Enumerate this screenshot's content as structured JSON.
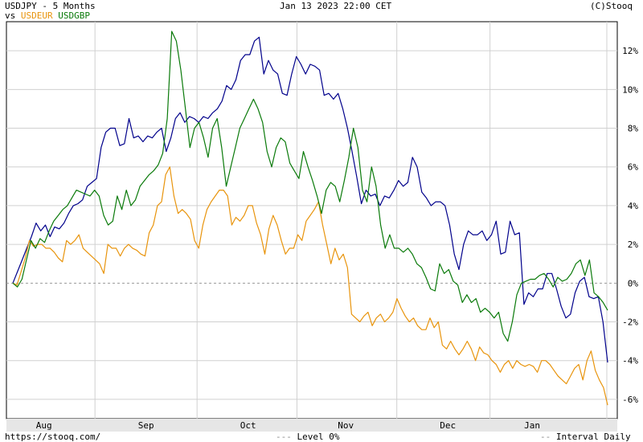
{
  "header": {
    "title": "USDJPY - 5 Months",
    "vs_prefix": "vs",
    "compare_1": "USDEUR",
    "compare_2": "USDGBP",
    "timestamp": "Jan 13 2023 22:00 CET",
    "copyright": "(C)Stooq"
  },
  "footer": {
    "url": "https://stooq.com/",
    "level_label": "Level 0%",
    "interval_label": "Interval Daily"
  },
  "colors": {
    "USDJPY": "#00008b",
    "USDEUR": "#e8940c",
    "USDGBP": "#0a7a0a",
    "grid": "#d0d0d0",
    "zero_line": "#999999"
  },
  "chart_data": {
    "type": "line",
    "title": "USDJPY - 5 Months",
    "ylim": [
      -7,
      13.5
    ],
    "yticks": [
      12,
      10,
      8,
      6,
      4,
      2,
      0,
      -2,
      -4,
      -6
    ],
    "ytick_labels": [
      "12%",
      "10%",
      "8%",
      "6%",
      "4%",
      "2%",
      "0%",
      "-2%",
      "-4%",
      "-6%"
    ],
    "x_index_range": [
      0,
      108
    ],
    "x_month_ticks": [
      {
        "label": "Aug",
        "x": 7
      },
      {
        "label": "Sep",
        "x": 30
      },
      {
        "label": "Oct",
        "x": 53
      },
      {
        "label": "Nov",
        "x": 75
      },
      {
        "label": "Dec",
        "x": 98
      },
      {
        "label": "Jan",
        "x": 117
      }
    ],
    "legend_placement": "top-left",
    "grid": true,
    "series": [
      {
        "name": "USDJPY",
        "values": [
          0,
          0.6,
          1.2,
          1.8,
          2.4,
          3.1,
          2.7,
          3.0,
          2.4,
          2.9,
          2.8,
          3.1,
          3.6,
          4.0,
          4.1,
          4.3,
          5.0,
          5.2,
          5.4,
          7.0,
          7.8,
          8.0,
          8.0,
          7.1,
          7.2,
          8.5,
          7.5,
          7.6,
          7.3,
          7.6,
          7.5,
          7.8,
          8.0,
          6.8,
          7.5,
          8.5,
          8.8,
          8.3,
          8.6,
          8.5,
          8.3,
          8.6,
          8.5,
          8.8,
          9.0,
          9.4,
          10.2,
          10.0,
          10.5,
          11.5,
          11.8,
          11.8,
          12.5,
          12.7,
          10.8,
          11.5,
          11.0,
          10.8,
          9.8,
          9.7,
          10.8,
          11.7,
          11.3,
          10.8,
          11.3,
          11.2,
          11.0,
          9.7,
          9.8,
          9.5,
          9.8,
          9.0,
          8.0,
          6.8,
          5.5,
          4.1,
          4.8,
          4.5,
          4.6,
          4.0,
          4.5,
          4.4,
          4.8,
          5.3,
          5.0,
          5.2,
          6.5,
          6.0,
          4.7,
          4.4,
          4.0,
          4.2,
          4.2,
          4.0,
          3.0,
          1.5,
          0.7,
          2.0,
          2.7,
          2.5,
          2.5,
          2.7,
          2.2,
          2.5,
          3.2,
          1.5,
          1.6,
          3.2,
          2.5,
          2.6,
          -1.1,
          -0.5,
          -0.7,
          -0.3,
          -0.3,
          0.5,
          0.5,
          -0.3,
          -1.2,
          -1.8,
          -1.6,
          -0.5,
          0.1,
          0.3,
          -0.7,
          -0.8,
          -0.7,
          -2.0,
          -4.1
        ]
      },
      {
        "name": "USDEUR",
        "values": [
          0,
          -0.1,
          0.6,
          1.3,
          2.2,
          1.9,
          2.0,
          2.0,
          1.8,
          1.8,
          1.6,
          1.3,
          1.1,
          2.2,
          2.0,
          2.2,
          2.5,
          1.8,
          1.6,
          1.4,
          1.2,
          1.0,
          0.5,
          2.0,
          1.8,
          1.8,
          1.4,
          1.8,
          2.0,
          1.8,
          1.7,
          1.5,
          1.4,
          2.6,
          3.0,
          4.0,
          4.2,
          5.6,
          6.0,
          4.5,
          3.6,
          3.8,
          3.6,
          3.3,
          2.2,
          1.8,
          3.0,
          3.8,
          4.2,
          4.5,
          4.8,
          4.8,
          4.5,
          3.0,
          3.4,
          3.2,
          3.5,
          4.0,
          4.0,
          3.1,
          2.5,
          1.5,
          2.8,
          3.5,
          3.0,
          2.2,
          1.5,
          1.8,
          1.8,
          2.5,
          2.2,
          3.2,
          3.5,
          3.8,
          4.2,
          3.0,
          2.0,
          1.0,
          1.8,
          1.2,
          1.5,
          0.8,
          -1.6,
          -1.8,
          -2.0,
          -1.7,
          -1.5,
          -2.2,
          -1.8,
          -1.6,
          -2.0,
          -1.8,
          -1.5,
          -0.8,
          -1.3,
          -1.7,
          -2.0,
          -1.8,
          -2.2,
          -2.4,
          -2.4,
          -1.8,
          -2.3,
          -2.0,
          -3.2,
          -3.4,
          -3.0,
          -3.4,
          -3.7,
          -3.4,
          -3.0,
          -3.4,
          -4.0,
          -3.3,
          -3.6,
          -3.7,
          -4.0,
          -4.2,
          -4.6,
          -4.2,
          -4.0,
          -4.4,
          -4.0,
          -4.2,
          -4.3,
          -4.2,
          -4.3,
          -4.6,
          -4.0,
          -4.0,
          -4.2,
          -4.5,
          -4.8,
          -5.0,
          -5.2,
          -4.8,
          -4.4,
          -4.2,
          -5.0,
          -4.0,
          -3.5,
          -4.5,
          -5.0,
          -5.4,
          -6.3
        ]
      },
      {
        "name": "USDGBP",
        "values": [
          0,
          -0.2,
          0.2,
          1.2,
          2.2,
          1.8,
          2.3,
          2.1,
          2.7,
          3.2,
          3.5,
          3.8,
          4.0,
          4.4,
          4.8,
          4.7,
          4.6,
          4.5,
          4.8,
          4.5,
          3.5,
          3.0,
          3.2,
          4.5,
          3.8,
          4.8,
          4.0,
          4.3,
          5.0,
          5.3,
          5.6,
          5.8,
          6.1,
          6.7,
          8.5,
          13.0,
          12.5,
          11.0,
          9.0,
          7.0,
          8.0,
          8.3,
          7.5,
          6.5,
          8.0,
          8.5,
          7.0,
          5.0,
          6.0,
          7.0,
          8.0,
          8.5,
          9.0,
          9.5,
          9.0,
          8.3,
          6.8,
          6.0,
          7.0,
          7.5,
          7.3,
          6.2,
          5.8,
          5.4,
          6.8,
          6.0,
          5.3,
          4.5,
          3.6,
          4.8,
          5.2,
          5.0,
          4.2,
          5.3,
          6.5,
          8.0,
          7.0,
          4.8,
          4.2,
          6.0,
          5.0,
          3.0,
          1.8,
          2.5,
          1.8,
          1.8,
          1.6,
          1.8,
          1.5,
          1.0,
          0.8,
          0.3,
          -0.3,
          -0.4,
          1.0,
          0.5,
          0.7,
          0.1,
          -0.1,
          -1.0,
          -0.6,
          -1.0,
          -0.8,
          -1.5,
          -1.3,
          -1.5,
          -1.8,
          -1.5,
          -2.6,
          -3.0,
          -2.0,
          -0.6,
          0.0,
          0.1,
          0.2,
          0.2,
          0.4,
          0.5,
          0.2,
          -0.2,
          0.3,
          0.1,
          0.2,
          0.5,
          1.0,
          1.2,
          0.4,
          1.2,
          -0.5,
          -0.7,
          -1.0,
          -1.4
        ]
      }
    ]
  }
}
